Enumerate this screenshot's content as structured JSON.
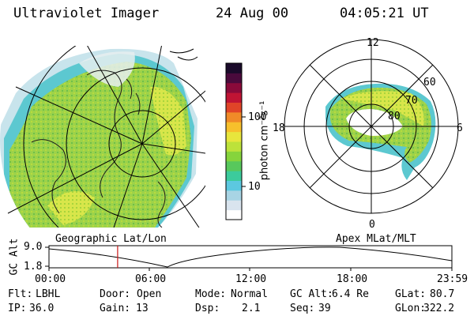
{
  "header": {
    "instrument": "Ultraviolet Imager",
    "date": "24 Aug 00",
    "time": "04:05:21 UT"
  },
  "left_panel": {
    "label": "Geographic Lat/Lon"
  },
  "right_panel": {
    "label": "Apex MLat/MLT",
    "mlt_labels": [
      "12",
      "18",
      "6",
      "0"
    ],
    "lat_labels": [
      "60",
      "70",
      "80"
    ]
  },
  "colorbar": {
    "unit_label": "photon cm⁻²s⁻¹",
    "tick_labels": [
      "100",
      "10"
    ],
    "colors": [
      "#ffffff",
      "#d9e4ee",
      "#a8d4e4",
      "#5cc8e0",
      "#3ccb9c",
      "#58c85c",
      "#86d43c",
      "#bde23a",
      "#e8e63c",
      "#f7c02c",
      "#f08a28",
      "#e04428",
      "#c01434",
      "#8a0a3a",
      "#4a0a3c",
      "#1a0a2a"
    ]
  },
  "altitude_plot": {
    "ylabel": "GC Alt",
    "yticks": [
      "9.0",
      "1.8"
    ],
    "xticks": [
      "00:00",
      "06:00",
      "12:00",
      "18:00",
      "23:59"
    ],
    "current_time_hours": 4.09
  },
  "status": {
    "flt_label": "Flt:",
    "flt_value": "LBHL",
    "ip_label": "IP:",
    "ip_value": "36.0",
    "door_label": "Door:",
    "door_value": "Open",
    "gain_label": "Gain:",
    "gain_value": "13",
    "mode_label": "Mode:",
    "mode_value": "Normal",
    "dsp_label": "Dsp:",
    "dsp_value": "2.1",
    "gcalt_label": "GC Alt:",
    "gcalt_value": "6.4 Re",
    "seq_label": "Seq:",
    "seq_value": "39",
    "glat_label": "GLat:",
    "glat_value": "80.7",
    "glon_label": "GLon:",
    "glon_value": "322.2"
  }
}
